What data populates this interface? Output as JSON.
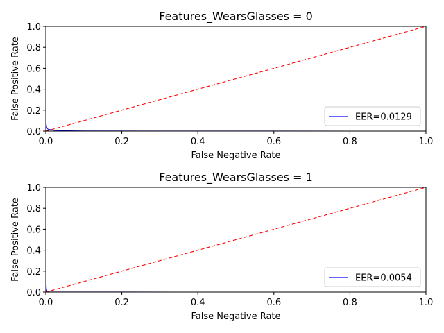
{
  "chart_data": [
    {
      "type": "line",
      "title": "Features_WearsGlasses = 0",
      "xlabel": "False Negative Rate",
      "ylabel": "False Positive Rate",
      "xlim": [
        0.0,
        1.0
      ],
      "ylim": [
        0.0,
        1.0
      ],
      "xticks": [
        0.0,
        0.2,
        0.4,
        0.6,
        0.8,
        1.0
      ],
      "yticks": [
        0.0,
        0.2,
        0.4,
        0.6,
        0.8,
        1.0
      ],
      "tick_labels_x": [
        "0.0",
        "0.2",
        "0.4",
        "0.6",
        "0.8",
        "1.0"
      ],
      "tick_labels_y": [
        "0.0",
        "0.2",
        "0.4",
        "0.6",
        "0.8",
        "1.0"
      ],
      "grid": false,
      "legend_position": "lower-right",
      "series": [
        {
          "name": "EER=0.0129",
          "color": "#0000ff",
          "style": "solid",
          "x": [
            0.0,
            0.0005,
            0.001,
            0.002,
            0.004,
            0.006,
            0.0129,
            0.02,
            0.04,
            0.1,
            0.3,
            0.6,
            1.0
          ],
          "y": [
            0.2,
            0.12,
            0.07,
            0.04,
            0.025,
            0.018,
            0.0129,
            0.008,
            0.004,
            0.002,
            0.001,
            0.0005,
            0.0
          ]
        },
        {
          "color": "#ff0000",
          "style": "dashed",
          "x": [
            0.0,
            1.0
          ],
          "y": [
            0.0,
            1.0
          ]
        }
      ]
    },
    {
      "type": "line",
      "title": "Features_WearsGlasses = 1",
      "xlabel": "False Negative Rate",
      "ylabel": "False Positive Rate",
      "xlim": [
        0.0,
        1.0
      ],
      "ylim": [
        0.0,
        1.0
      ],
      "xticks": [
        0.0,
        0.2,
        0.4,
        0.6,
        0.8,
        1.0
      ],
      "yticks": [
        0.0,
        0.2,
        0.4,
        0.6,
        0.8,
        1.0
      ],
      "tick_labels_x": [
        "0.0",
        "0.2",
        "0.4",
        "0.6",
        "0.8",
        "1.0"
      ],
      "tick_labels_y": [
        "0.0",
        "0.2",
        "0.4",
        "0.6",
        "0.8",
        "1.0"
      ],
      "grid": false,
      "legend_position": "lower-right",
      "series": [
        {
          "name": "EER=0.0054",
          "color": "#0000ff",
          "style": "solid",
          "x": [
            0.0,
            0.0003,
            0.0008,
            0.0015,
            0.003,
            0.0054,
            0.01,
            0.05,
            0.2,
            0.5,
            1.0
          ],
          "y": [
            0.4,
            0.2,
            0.08,
            0.03,
            0.012,
            0.0054,
            0.002,
            0.001,
            0.0005,
            0.0002,
            0.0
          ]
        },
        {
          "color": "#ff0000",
          "style": "dashed",
          "x": [
            0.0,
            1.0
          ],
          "y": [
            0.0,
            1.0
          ]
        }
      ]
    }
  ]
}
